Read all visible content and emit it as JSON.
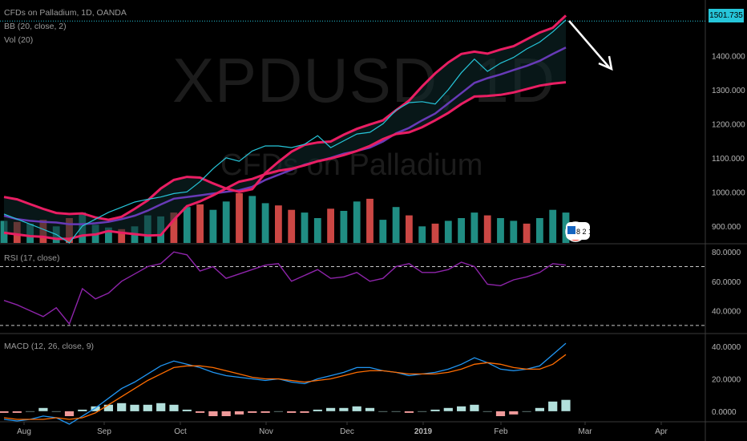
{
  "header": {
    "symbol_line": "CFDs on Palladium, 1D, OANDA",
    "bb_label": "BB (20, close, 2)",
    "vol_label": "Vol (20)"
  },
  "watermark": {
    "ticker": "XPDUSD, 1D",
    "name": "CFDs on Palladium"
  },
  "last_price_label": "1501.735",
  "badge_text": "8 2 1",
  "colors": {
    "background": "#000000",
    "bb_band": "#e91e63",
    "bb_basis": "#673ab7",
    "price": "#26c6da",
    "rsi": "#8e24aa",
    "macd": "#2196f3",
    "signal": "#ff6d00",
    "vol_up": "#26a69a",
    "vol_down": "#ef5350",
    "arrow": "#ffffff"
  },
  "chart_data": [
    {
      "type": "line",
      "panel": "price",
      "title": "CFDs on Palladium, 1D, OANDA",
      "ylim": [
        850,
        1540
      ],
      "y_ticks": [
        "1400.000",
        "1300.000",
        "1200.000",
        "1100.000",
        "1000.000",
        "900.000"
      ],
      "x_ticks": [
        "Aug",
        "Sep",
        "Oct",
        "Nov",
        "Dec",
        "2019",
        "Feb",
        "Mar",
        "Apr"
      ],
      "last_value": 1501.735,
      "series": [
        {
          "name": "Upper",
          "values": [
            985,
            978,
            964,
            950,
            938,
            935,
            937,
            925,
            918,
            927,
            950,
            975,
            1010,
            1035,
            1044,
            1042,
            1025,
            1010,
            1000,
            1008,
            1055,
            1088,
            1118,
            1138,
            1145,
            1148,
            1168,
            1185,
            1198,
            1210,
            1240,
            1268,
            1310,
            1348,
            1380,
            1405,
            1412,
            1406,
            1418,
            1428,
            1448,
            1468,
            1482,
            1518
          ]
        },
        {
          "name": "Basis",
          "values": [
            930,
            920,
            915,
            912,
            910,
            905,
            905,
            908,
            912,
            920,
            930,
            945,
            963,
            980,
            985,
            990,
            995,
            1000,
            1005,
            1015,
            1035,
            1050,
            1065,
            1080,
            1090,
            1100,
            1112,
            1120,
            1130,
            1148,
            1172,
            1188,
            1210,
            1230,
            1260,
            1290,
            1320,
            1334,
            1345,
            1358,
            1370,
            1385,
            1405,
            1424
          ]
        },
        {
          "name": "Lower",
          "values": [
            880,
            875,
            870,
            868,
            862,
            862,
            872,
            875,
            885,
            880,
            876,
            872,
            873,
            918,
            958,
            972,
            990,
            1010,
            1030,
            1038,
            1052,
            1062,
            1068,
            1078,
            1090,
            1098,
            1108,
            1120,
            1135,
            1155,
            1170,
            1175,
            1190,
            1210,
            1232,
            1258,
            1280,
            1282,
            1285,
            1292,
            1302,
            1312,
            1318,
            1322
          ]
        },
        {
          "name": "Close",
          "values": [
            935,
            920,
            905,
            890,
            875,
            850,
            900,
            920,
            940,
            955,
            970,
            978,
            985,
            995,
            1000,
            1030,
            1068,
            1100,
            1090,
            1120,
            1135,
            1135,
            1130,
            1140,
            1165,
            1130,
            1150,
            1170,
            1175,
            1200,
            1240,
            1262,
            1265,
            1258,
            1300,
            1350,
            1390,
            1354,
            1378,
            1395,
            1420,
            1440,
            1470,
            1505
          ]
        }
      ]
    },
    {
      "type": "bar",
      "panel": "volume",
      "series": [
        {
          "name": "Vol (20)",
          "values": [
            40,
            38,
            35,
            42,
            30,
            45,
            55,
            33,
            28,
            25,
            30,
            50,
            48,
            55,
            65,
            70,
            60,
            75,
            90,
            85,
            72,
            68,
            60,
            55,
            45,
            62,
            58,
            75,
            80,
            42,
            65,
            50,
            30,
            35,
            40,
            45,
            55,
            50,
            45,
            40,
            35,
            45,
            60,
            55
          ]
        },
        {
          "name": "Direction",
          "values": [
            1,
            0,
            1,
            0,
            1,
            0,
            1,
            1,
            1,
            0,
            1,
            1,
            1,
            0,
            1,
            0,
            1,
            1,
            0,
            1,
            1,
            0,
            0,
            1,
            1,
            0,
            1,
            1,
            0,
            1,
            1,
            0,
            1,
            0,
            1,
            1,
            1,
            0,
            1,
            1,
            0,
            1,
            1,
            1
          ]
        }
      ]
    },
    {
      "type": "line",
      "panel": "rsi",
      "title": "RSI (17, close)",
      "ylim": [
        25,
        85
      ],
      "y_ticks": [
        "80.0000",
        "60.0000",
        "40.0000"
      ],
      "levels": [
        70,
        30
      ],
      "series": [
        {
          "name": "RSI",
          "values": [
            47,
            44,
            40,
            36,
            42,
            31,
            55,
            48,
            52,
            60,
            65,
            70,
            72,
            80,
            78,
            67,
            70,
            62,
            65,
            68,
            71,
            72,
            60,
            64,
            68,
            62,
            63,
            66,
            60,
            62,
            70,
            72,
            66,
            66,
            68,
            73,
            70,
            58,
            57,
            61,
            63,
            66,
            72,
            71
          ]
        }
      ]
    },
    {
      "type": "line",
      "panel": "macd",
      "title": "MACD (12, 26, close, 9)",
      "ylim": [
        -6,
        45
      ],
      "y_ticks": [
        "40.0000",
        "20.0000",
        "0.0000"
      ],
      "series": [
        {
          "name": "MACD",
          "values": [
            -5,
            -6,
            -5,
            -3,
            -4,
            -8,
            -3,
            2,
            8,
            14,
            18,
            23,
            28,
            31,
            29,
            27,
            24,
            22,
            21,
            20,
            19,
            20,
            18,
            17,
            20,
            22,
            24,
            27,
            27,
            25,
            24,
            22,
            23,
            24,
            26,
            29,
            33,
            30,
            26,
            25,
            26,
            28,
            35,
            42
          ]
        },
        {
          "name": "Signal",
          "values": [
            -4,
            -5,
            -5,
            -5,
            -4,
            -5,
            -4,
            -1,
            4,
            9,
            14,
            19,
            23,
            27,
            28,
            28,
            27,
            25,
            23,
            21,
            20,
            20,
            19,
            18,
            19,
            20,
            22,
            24,
            25,
            25,
            24,
            23,
            23,
            23,
            24,
            26,
            29,
            30,
            29,
            27,
            26,
            26,
            29,
            35
          ]
        },
        {
          "name": "Histogram",
          "values": [
            -1,
            -1,
            0,
            2,
            0,
            -3,
            1,
            3,
            4,
            5,
            4,
            4,
            5,
            4,
            1,
            -1,
            -3,
            -3,
            -2,
            -1,
            -1,
            0,
            -1,
            -1,
            1,
            2,
            2,
            3,
            2,
            0,
            0,
            -1,
            0,
            1,
            2,
            3,
            4,
            0,
            -3,
            -2,
            0,
            2,
            6,
            7
          ]
        }
      ]
    }
  ]
}
